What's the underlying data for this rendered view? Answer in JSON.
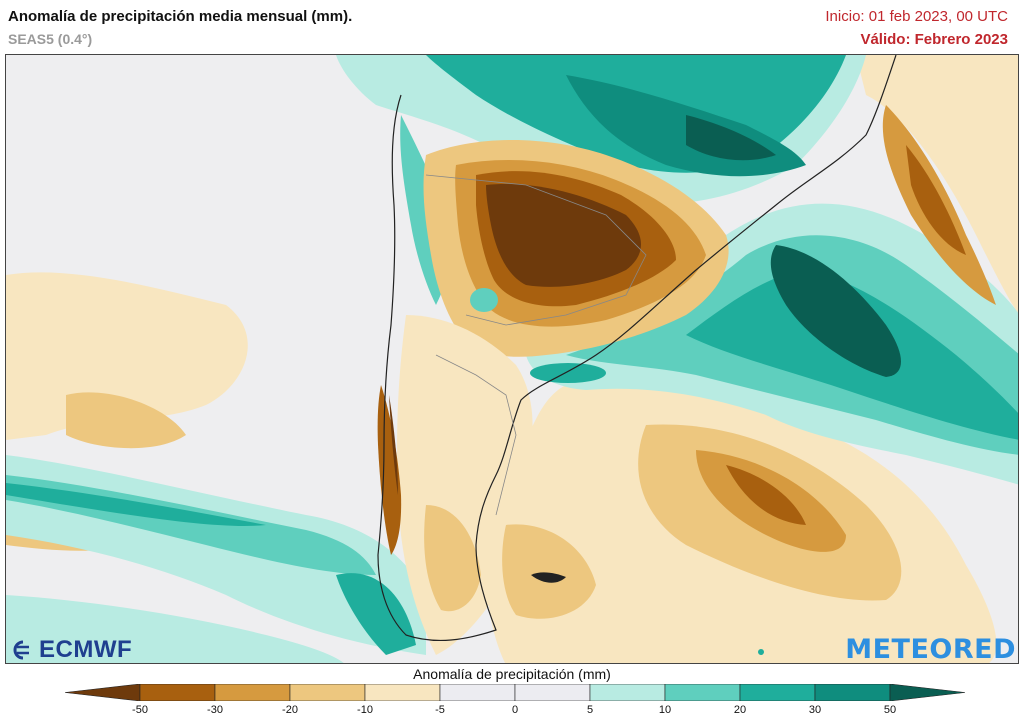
{
  "header": {
    "title": "Anomalía de precipitación media mensual (mm).",
    "subtitle": "SEAS5 (0.4°)",
    "init": "Inicio: 01 feb 2023, 00 UTC",
    "valid": "Válido: Febrero 2023"
  },
  "logos": {
    "left": "ECMWF",
    "right": "METEORED"
  },
  "legend": {
    "title": "Anomalía de precipitación (mm)",
    "ticks": [
      "-50",
      "-30",
      "-20",
      "-10",
      "-5",
      "0",
      "5",
      "10",
      "20",
      "30",
      "50"
    ],
    "colors": [
      "#6e3a0c",
      "#a8600f",
      "#d69a3f",
      "#edc77f",
      "#f8e6c0",
      "#ececf1",
      "#ececf1",
      "#b8ebe2",
      "#5fcfbe",
      "#1fae9c",
      "#0f8d7e",
      "#0a5e52"
    ]
  },
  "palette": {
    "background": "#eeeef0",
    "border": "#333333",
    "land_border": "#888888"
  }
}
